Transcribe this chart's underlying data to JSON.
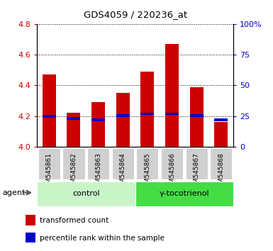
{
  "title": "GDS4059 / 220236_at",
  "samples": [
    "GSM545861",
    "GSM545862",
    "GSM545863",
    "GSM545864",
    "GSM545865",
    "GSM545866",
    "GSM545867",
    "GSM545868"
  ],
  "red_values": [
    4.47,
    4.22,
    4.29,
    4.35,
    4.49,
    4.67,
    4.39,
    4.16
  ],
  "blue_values": [
    4.2,
    4.185,
    4.175,
    4.205,
    4.215,
    4.215,
    4.205,
    4.175
  ],
  "base": 4.0,
  "ylim": [
    4.0,
    4.8
  ],
  "yticks_left": [
    4.0,
    4.2,
    4.4,
    4.6,
    4.8
  ],
  "yticks_right": [
    0,
    25,
    50,
    75,
    100
  ],
  "groups": [
    {
      "label": "control",
      "start": 0,
      "end": 4,
      "color": "#c8f5c8"
    },
    {
      "label": "γ-tocotrienol",
      "start": 4,
      "end": 8,
      "color": "#44dd44"
    }
  ],
  "agent_label": "agent",
  "red_color": "#cc0000",
  "blue_color": "#0000cc",
  "bar_width": 0.55,
  "blue_bar_height": 0.018,
  "legend_items": [
    {
      "color": "#cc0000",
      "label": "transformed count"
    },
    {
      "color": "#0000cc",
      "label": "percentile rank within the sample"
    }
  ],
  "plot_bg": "#ffffff",
  "tick_label_color_left": "#cc0000",
  "tick_label_color_right": "#0000cc",
  "grid_color": "black",
  "spine_color": "black"
}
